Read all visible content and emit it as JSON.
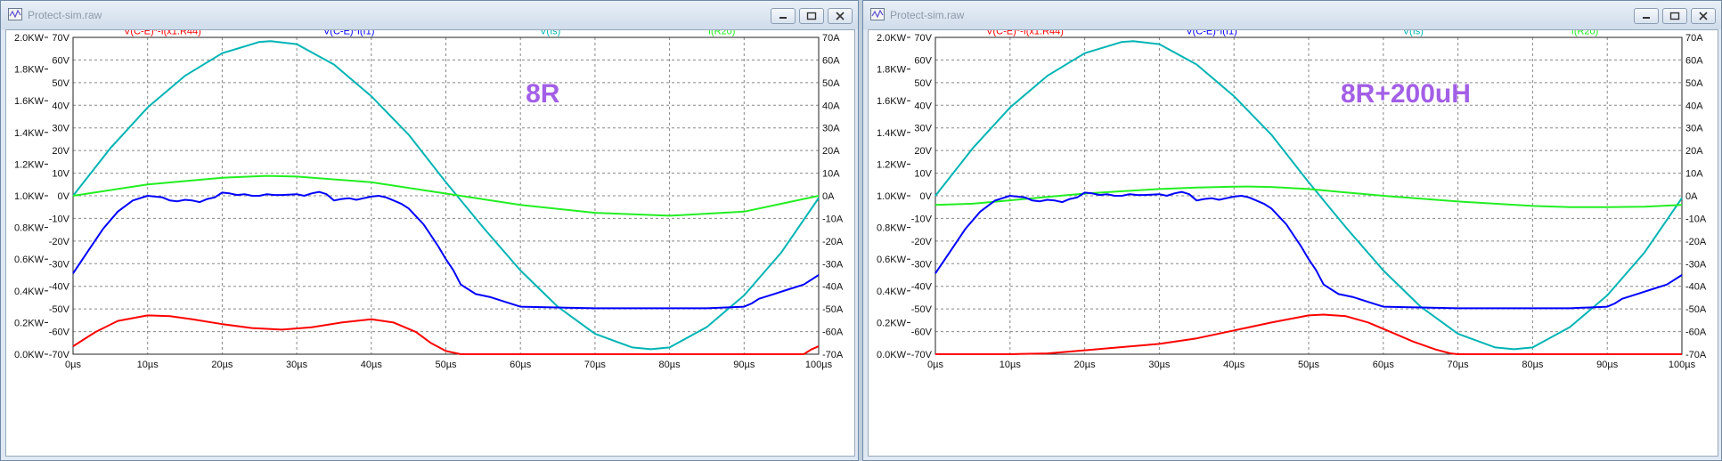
{
  "windows": [
    {
      "id": "left",
      "title": "Protect-sim.raw",
      "annotation": "8R",
      "chart_data": {
        "type": "line",
        "legend": [
          {
            "name": "V(C-E)*-I(x1:R44)",
            "color": "#ff0000"
          },
          {
            "name": "V(C-E)*I(I1)",
            "color": "#0000ff"
          },
          {
            "name": "V(Is)",
            "color": "#00b4b4"
          },
          {
            "name": "I(R20)",
            "color": "#22ee22"
          }
        ],
        "x_ticks": [
          "0µs",
          "10µs",
          "20µs",
          "30µs",
          "40µs",
          "50µs",
          "60µs",
          "70µs",
          "80µs",
          "90µs",
          "100µs"
        ],
        "xlim": [
          0,
          100
        ],
        "left_ticks": [
          "0.0KW",
          "0.2KW",
          "0.4KW",
          "0.6KW",
          "0.8KW",
          "1.0KW",
          "1.2KW",
          "1.4KW",
          "1.6KW",
          "1.8KW",
          "2.0KW"
        ],
        "left_lim": [
          0,
          2.0
        ],
        "mid_ticks": [
          "-70V",
          "-60V",
          "-50V",
          "-40V",
          "-30V",
          "-20V",
          "-10V",
          "0V",
          "10V",
          "20V",
          "30V",
          "40V",
          "50V",
          "60V",
          "70V"
        ],
        "mid_lim": [
          -70,
          70
        ],
        "right_ticks": [
          "-70A",
          "-60A",
          "-50A",
          "-40A",
          "-30A",
          "-20A",
          "-10A",
          "0A",
          "10A",
          "20A",
          "30A",
          "40A",
          "50A",
          "60A",
          "70A"
        ],
        "right_lim": [
          -70,
          70
        ],
        "grid": true,
        "series": [
          {
            "name": "V(C-E)*-I(x1:R44)",
            "unit": "KW",
            "color": "#ff0000",
            "x": [
              0,
              3,
              6,
              10,
              13,
              16,
              20,
              24,
              28,
              32,
              36,
              40,
              43,
              46,
              48,
              50,
              52,
              60,
              70,
              80,
              90,
              98,
              99,
              100
            ],
            "y": [
              0.05,
              0.14,
              0.21,
              0.245,
              0.24,
              0.22,
              0.19,
              0.165,
              0.155,
              0.17,
              0.2,
              0.22,
              0.2,
              0.14,
              0.07,
              0.02,
              0.0,
              0.0,
              0.0,
              0.0,
              0.0,
              0.0,
              0.03,
              0.05
            ]
          },
          {
            "name": "V(C-E)*I(I1)",
            "unit": "KW",
            "color": "#0000ff",
            "x": [
              0,
              2,
              4,
              6,
              8,
              10,
              12,
              13,
              14,
              15,
              16,
              17,
              18,
              19,
              20,
              21,
              22,
              23,
              24,
              25,
              26,
              27,
              28,
              30,
              31,
              32,
              33,
              34,
              35,
              36,
              37,
              38,
              39,
              40,
              41,
              42,
              43,
              44,
              45,
              46,
              47,
              48,
              49,
              50,
              51,
              52,
              54,
              56,
              58,
              60,
              65,
              70,
              75,
              80,
              85,
              90,
              91,
              92,
              94,
              96,
              98,
              100
            ],
            "y": [
              0.51,
              0.65,
              0.79,
              0.9,
              0.97,
              1.0,
              0.99,
              0.97,
              0.965,
              0.975,
              0.97,
              0.96,
              0.98,
              0.99,
              1.02,
              1.015,
              1.005,
              1.01,
              1.0,
              1.0,
              1.01,
              1.005,
              1.005,
              1.01,
              1.0,
              1.015,
              1.025,
              1.01,
              0.97,
              0.98,
              0.985,
              0.975,
              0.985,
              0.995,
              1.0,
              0.99,
              0.97,
              0.95,
              0.92,
              0.87,
              0.82,
              0.75,
              0.68,
              0.6,
              0.53,
              0.44,
              0.38,
              0.36,
              0.33,
              0.3,
              0.295,
              0.29,
              0.29,
              0.29,
              0.29,
              0.3,
              0.32,
              0.35,
              0.38,
              0.41,
              0.44,
              0.5
            ]
          },
          {
            "name": "V(Is)",
            "unit": "V",
            "color": "#00b4b4",
            "x": [
              0,
              5,
              10,
              15,
              20,
              25,
              26.5,
              30,
              35,
              40,
              45,
              50,
              55,
              60,
              65,
              70,
              75,
              77.5,
              80,
              85,
              90,
              95,
              100
            ],
            "y": [
              0,
              21,
              39,
              53,
              63,
              68,
              68.3,
              67,
              58,
              44,
              27,
              6,
              -14,
              -33,
              -49,
              -61,
              -67,
              -67.8,
              -67,
              -58,
              -44,
              -25,
              -1
            ]
          },
          {
            "name": "I(R20)",
            "unit": "A",
            "color": "#22ee22",
            "x": [
              0,
              10,
              20,
              26,
              30,
              40,
              50,
              60,
              70,
              80,
              90,
              100
            ],
            "y": [
              0,
              5,
              8,
              8.8,
              8.5,
              6,
              1,
              -4,
              -7.5,
              -8.8,
              -7,
              0
            ]
          }
        ]
      }
    },
    {
      "id": "right",
      "title": "Protect-sim.raw",
      "annotation": "8R+200uH",
      "chart_data": {
        "type": "line",
        "legend": [
          {
            "name": "V(C-E)*-I(x1:R44)",
            "color": "#ff0000"
          },
          {
            "name": "V(C-E)*I(I1)",
            "color": "#0000ff"
          },
          {
            "name": "V(Is)",
            "color": "#00b4b4"
          },
          {
            "name": "I(R20)",
            "color": "#22ee22"
          }
        ],
        "x_ticks": [
          "0µs",
          "10µs",
          "20µs",
          "30µs",
          "40µs",
          "50µs",
          "60µs",
          "70µs",
          "80µs",
          "90µs",
          "100µs"
        ],
        "xlim": [
          0,
          100
        ],
        "left_ticks": [
          "0.0KW",
          "0.2KW",
          "0.4KW",
          "0.6KW",
          "0.8KW",
          "1.0KW",
          "1.2KW",
          "1.4KW",
          "1.6KW",
          "1.8KW",
          "2.0KW"
        ],
        "left_lim": [
          0,
          2.0
        ],
        "mid_ticks": [
          "-70V",
          "-60V",
          "-50V",
          "-40V",
          "-30V",
          "-20V",
          "-10V",
          "0V",
          "10V",
          "20V",
          "30V",
          "40V",
          "50V",
          "60V",
          "70V"
        ],
        "mid_lim": [
          -70,
          70
        ],
        "right_ticks": [
          "-70A",
          "-60A",
          "-50A",
          "-40A",
          "-30A",
          "-20A",
          "-10A",
          "0A",
          "10A",
          "20A",
          "30A",
          "40A",
          "50A",
          "60A",
          "70A"
        ],
        "right_lim": [
          -70,
          70
        ],
        "grid": true,
        "series": [
          {
            "name": "V(C-E)*-I(x1:R44)",
            "unit": "KW",
            "color": "#ff0000",
            "x": [
              0,
              10,
              15,
              20,
              25,
              30,
              35,
              40,
              45,
              50,
              52,
              55,
              58,
              61,
              64,
              67,
              69,
              70,
              80,
              90,
              100
            ],
            "y": [
              0,
              0,
              0.005,
              0.025,
              0.045,
              0.065,
              0.1,
              0.15,
              0.2,
              0.245,
              0.25,
              0.24,
              0.2,
              0.14,
              0.08,
              0.03,
              0.005,
              0,
              0,
              0,
              0
            ]
          },
          {
            "name": "V(C-E)*I(I1)",
            "unit": "KW",
            "color": "#0000ff",
            "x": [
              0,
              2,
              4,
              6,
              8,
              10,
              12,
              13,
              14,
              15,
              16,
              17,
              18,
              19,
              20,
              21,
              22,
              23,
              24,
              25,
              26,
              27,
              28,
              30,
              31,
              32,
              33,
              34,
              35,
              36,
              37,
              38,
              39,
              40,
              41,
              42,
              43,
              44,
              45,
              46,
              47,
              48,
              49,
              50,
              51,
              52,
              54,
              56,
              58,
              60,
              65,
              70,
              75,
              80,
              85,
              90,
              91,
              92,
              94,
              96,
              98,
              100
            ],
            "y": [
              0.51,
              0.65,
              0.79,
              0.9,
              0.97,
              1.0,
              0.99,
              0.97,
              0.965,
              0.975,
              0.97,
              0.96,
              0.98,
              0.99,
              1.02,
              1.015,
              1.005,
              1.01,
              1.0,
              1.0,
              1.01,
              1.005,
              1.005,
              1.01,
              1.0,
              1.015,
              1.025,
              1.01,
              0.97,
              0.98,
              0.985,
              0.975,
              0.985,
              0.995,
              1.0,
              0.99,
              0.97,
              0.95,
              0.92,
              0.87,
              0.82,
              0.75,
              0.68,
              0.6,
              0.53,
              0.44,
              0.38,
              0.36,
              0.33,
              0.3,
              0.295,
              0.29,
              0.29,
              0.29,
              0.29,
              0.3,
              0.32,
              0.35,
              0.38,
              0.41,
              0.44,
              0.5
            ]
          },
          {
            "name": "V(Is)",
            "unit": "V",
            "color": "#00b4b4",
            "x": [
              0,
              5,
              10,
              15,
              20,
              25,
              26.5,
              30,
              35,
              40,
              45,
              50,
              55,
              60,
              65,
              70,
              75,
              77.5,
              80,
              85,
              90,
              95,
              100
            ],
            "y": [
              0,
              21,
              39,
              53,
              63,
              68,
              68.3,
              67,
              58,
              44,
              27,
              6,
              -14,
              -33,
              -49,
              -61,
              -67,
              -67.8,
              -67,
              -58,
              -44,
              -25,
              -1
            ]
          },
          {
            "name": "I(R20)",
            "unit": "A",
            "color": "#22ee22",
            "x": [
              0,
              5,
              10,
              15,
              20,
              25,
              30,
              35,
              40,
              42,
              45,
              50,
              55,
              60,
              70,
              80,
              85,
              90,
              95,
              100
            ],
            "y": [
              -4,
              -3.5,
              -2,
              -0.5,
              1,
              2,
              3,
              3.6,
              4,
              4.1,
              3.9,
              3,
              1.5,
              0,
              -2.5,
              -4.5,
              -5,
              -5,
              -4.8,
              -4
            ]
          }
        ]
      }
    }
  ]
}
